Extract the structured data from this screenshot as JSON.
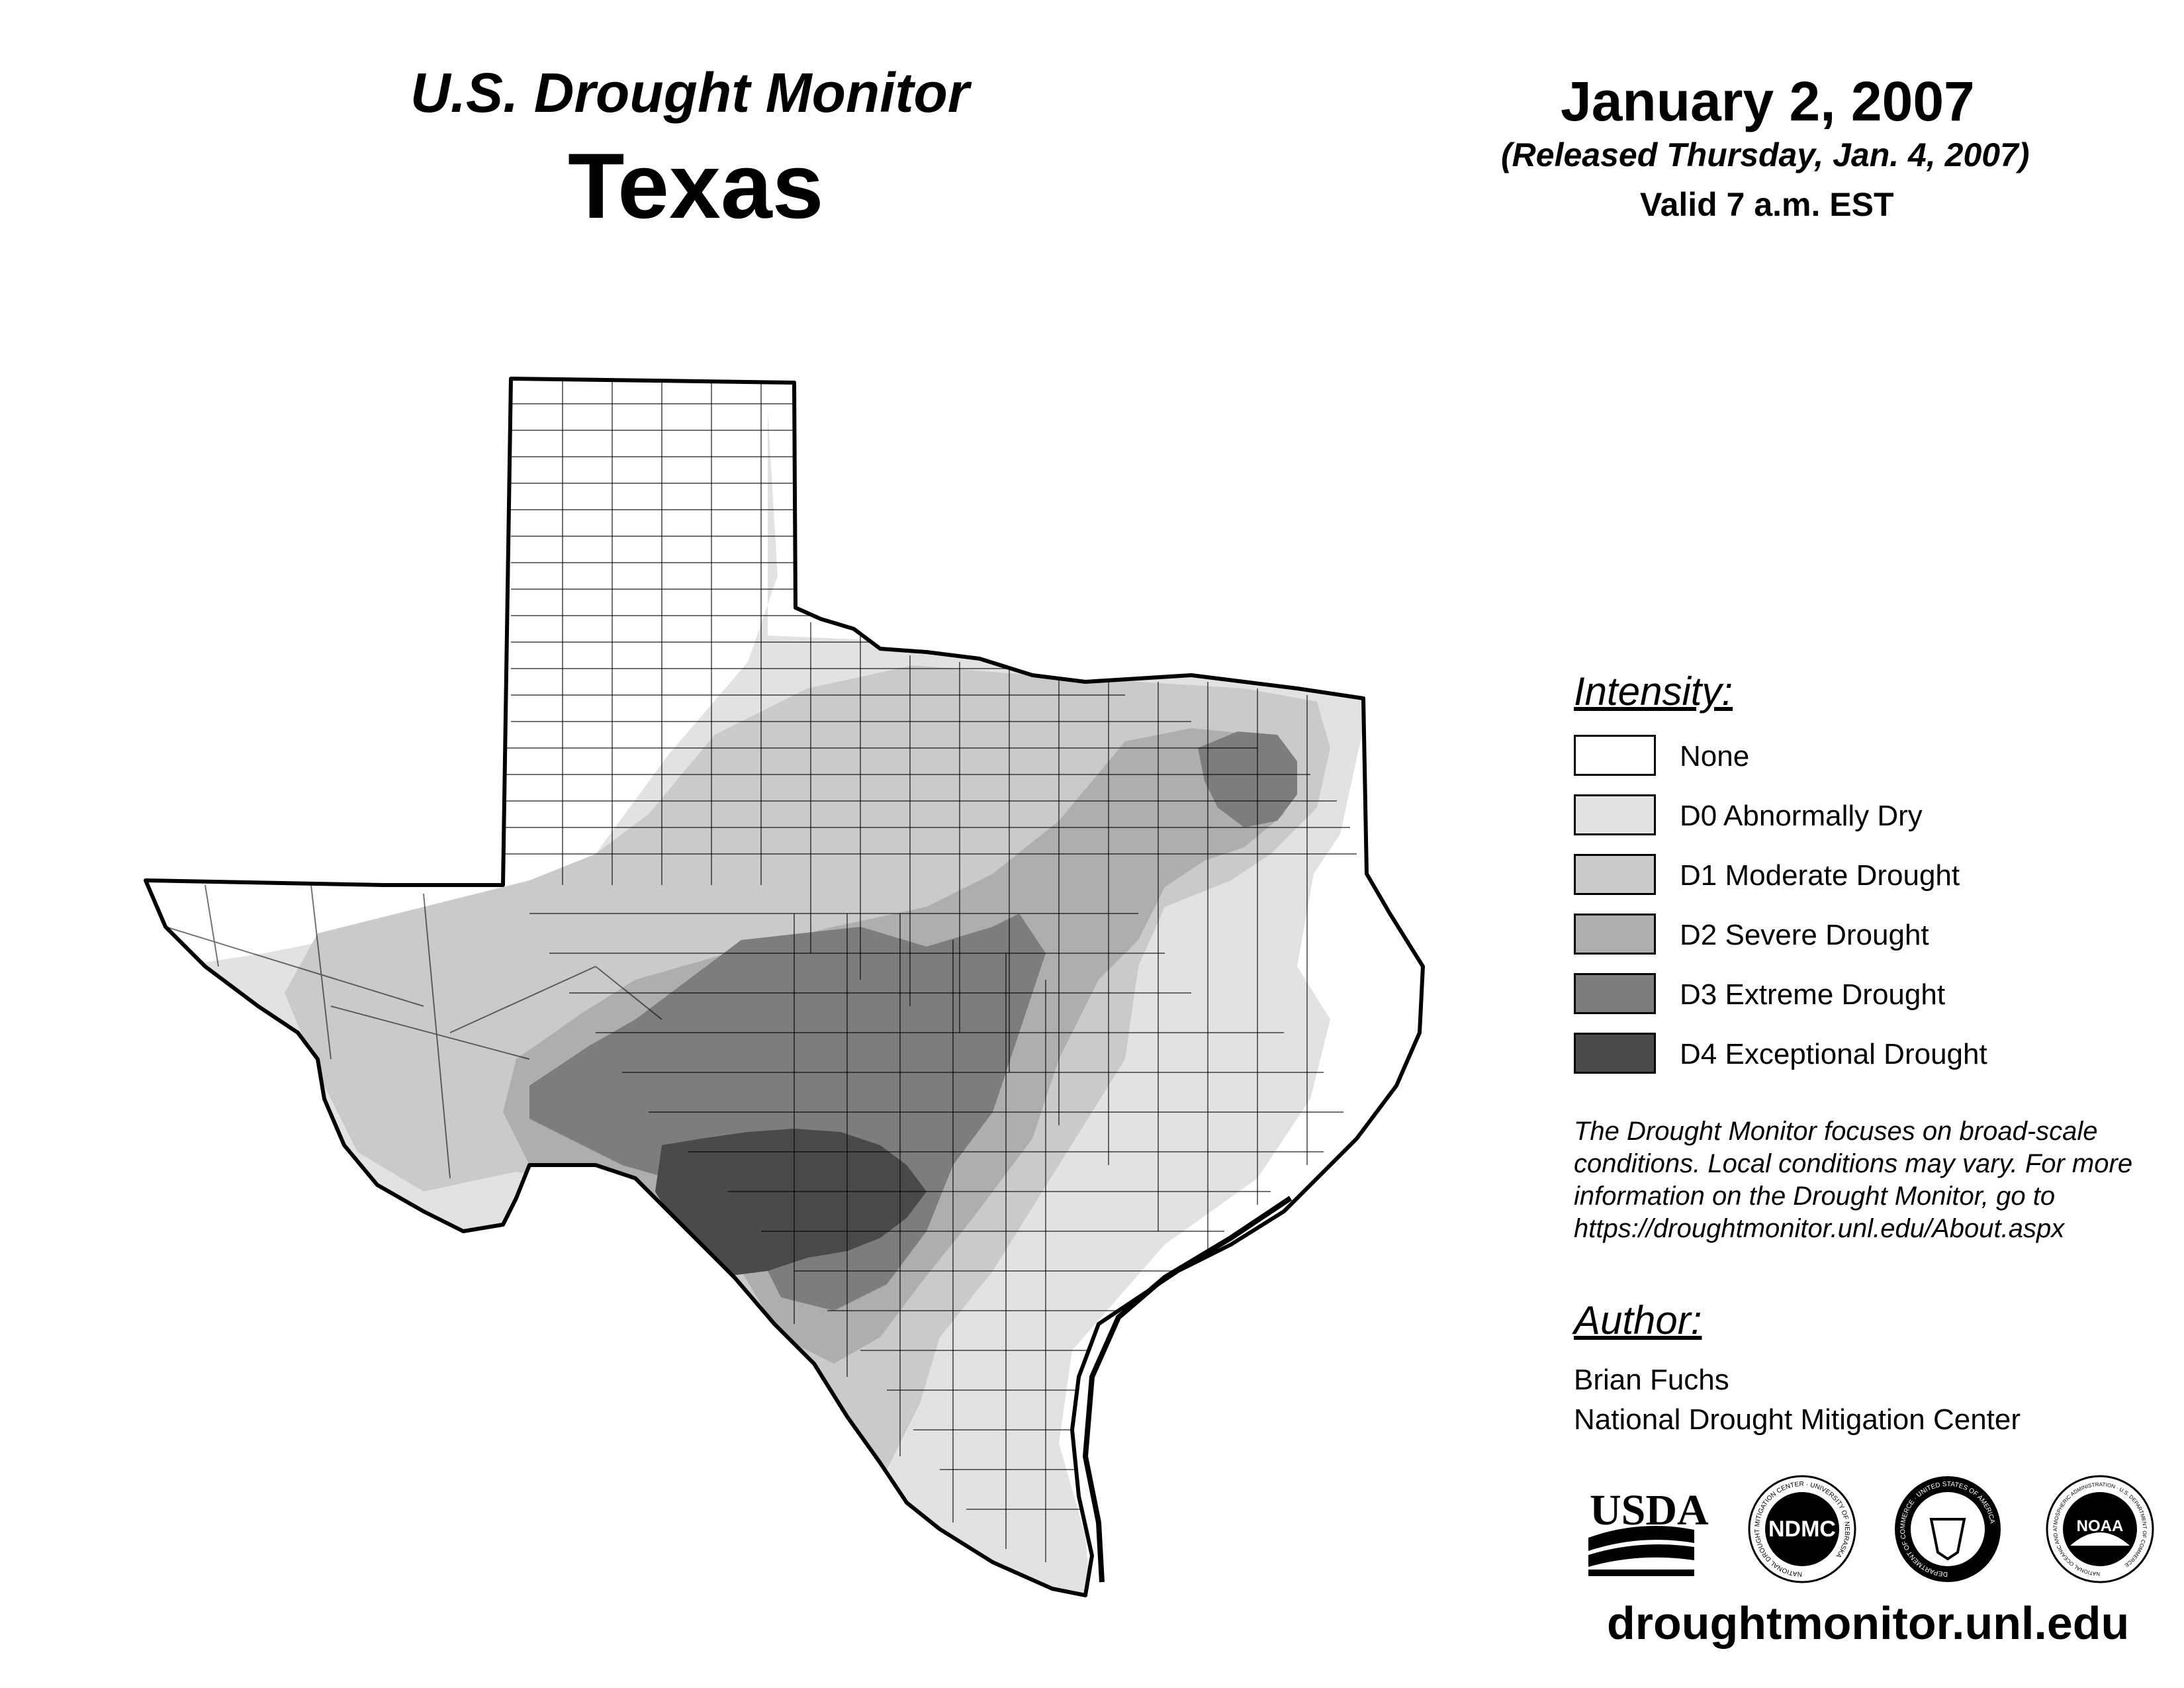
{
  "header": {
    "subtitle": "U.S. Drought Monitor",
    "state": "Texas",
    "date": "January 2, 2007",
    "released": "(Released Thursday, Jan. 4, 2007)",
    "valid": "Valid 7 a.m. EST"
  },
  "legend": {
    "heading": "Intensity:",
    "items": [
      {
        "label": "None",
        "color": "#ffffff"
      },
      {
        "label": "D0 Abnormally Dry",
        "color": "#e2e2e2"
      },
      {
        "label": "D1 Moderate Drought",
        "color": "#cacaca"
      },
      {
        "label": "D2 Severe Drought",
        "color": "#aeaeae"
      },
      {
        "label": "D3 Extreme Drought",
        "color": "#7d7d7d"
      },
      {
        "label": "D4 Exceptional Drought",
        "color": "#4a4a4a"
      }
    ]
  },
  "note": {
    "lines": [
      "The Drought Monitor focuses on broad-scale",
      "conditions. Local conditions may vary. For more",
      "information on the Drought Monitor, go to",
      "https://droughtmonitor.unl.edu/About.aspx"
    ]
  },
  "author": {
    "heading": "Author:",
    "name": "Brian Fuchs",
    "organization": "National Drought Mitigation Center"
  },
  "logos": {
    "usda": "USDA",
    "ndmc": "NDMC",
    "ndmc_ring": "NATIONAL DROUGHT MITIGATION CENTER · UNIVERSITY OF NEBRASKA",
    "commerce_ring": "DEPARTMENT OF COMMERCE · UNITED STATES OF AMERICA",
    "noaa": "NOAA",
    "noaa_ring": "NATIONAL OCEANIC AND ATMOSPHERIC ADMINISTRATION · U.S. DEPARTMENT OF COMMERCE"
  },
  "website": "droughtmonitor.unl.edu"
}
